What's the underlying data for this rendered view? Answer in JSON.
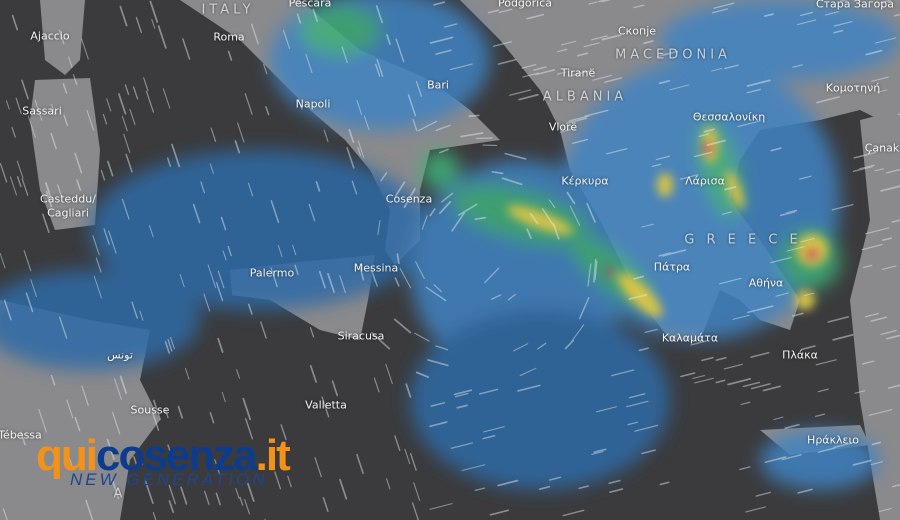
{
  "map": {
    "style": "dark weather radar with wind animation streaks",
    "colors": {
      "sea": "#3b3b3d",
      "land": "#8a8a8c",
      "rain_light": "#3f83c2",
      "rain_moderate": "#3fb07a",
      "rain_heavy": "#d8c447",
      "rain_extreme": "#c8345e"
    },
    "labels": [
      {
        "name": "Pescara",
        "type": "city"
      },
      {
        "name": "ITALY",
        "type": "country"
      },
      {
        "name": "Roma",
        "type": "city"
      },
      {
        "name": "Podgorica",
        "type": "city"
      },
      {
        "name": "Стара Загора",
        "type": "city"
      },
      {
        "name": "Ajaccio",
        "type": "city"
      },
      {
        "name": "Скопје",
        "type": "city"
      },
      {
        "name": "MACEDONIA",
        "type": "country"
      },
      {
        "name": "Tiranë",
        "type": "city"
      },
      {
        "name": "Bari",
        "type": "city"
      },
      {
        "name": "Napoli",
        "type": "city"
      },
      {
        "name": "ALBANIA",
        "type": "country"
      },
      {
        "name": "Κομοτηνή",
        "type": "city"
      },
      {
        "name": "Sassari",
        "type": "city"
      },
      {
        "name": "Vlorë",
        "type": "city"
      },
      {
        "name": "Θεσσαλονίκη",
        "type": "city"
      },
      {
        "name": "Çanak",
        "type": "city"
      },
      {
        "name": "Κέρκυρα",
        "type": "city"
      },
      {
        "name": "Λάρισα",
        "type": "city"
      },
      {
        "name": "Cosenza",
        "type": "city"
      },
      {
        "name": "Casteddu/",
        "type": "city"
      },
      {
        "name": "Cagliari",
        "type": "city"
      },
      {
        "name": "G R E E C E",
        "type": "country"
      },
      {
        "name": "Palermo",
        "type": "city"
      },
      {
        "name": "Messina",
        "type": "city"
      },
      {
        "name": "Πάτρα",
        "type": "city"
      },
      {
        "name": "Αθήνα",
        "type": "city"
      },
      {
        "name": "Siracusa",
        "type": "city"
      },
      {
        "name": "تونس",
        "type": "city"
      },
      {
        "name": "Καλαμάτα",
        "type": "city"
      },
      {
        "name": "Πλάκα",
        "type": "city"
      },
      {
        "name": "Sousse",
        "type": "city"
      },
      {
        "name": "Valletta",
        "type": "city"
      },
      {
        "name": "Tébessa",
        "type": "city"
      },
      {
        "name": "Ηράκλειο",
        "type": "city"
      },
      {
        "name": "A",
        "type": "country"
      }
    ]
  },
  "watermark": {
    "part1": "qui",
    "part2": "cosenza",
    "part3": ".it",
    "tagline": "NEW GENERATION"
  }
}
